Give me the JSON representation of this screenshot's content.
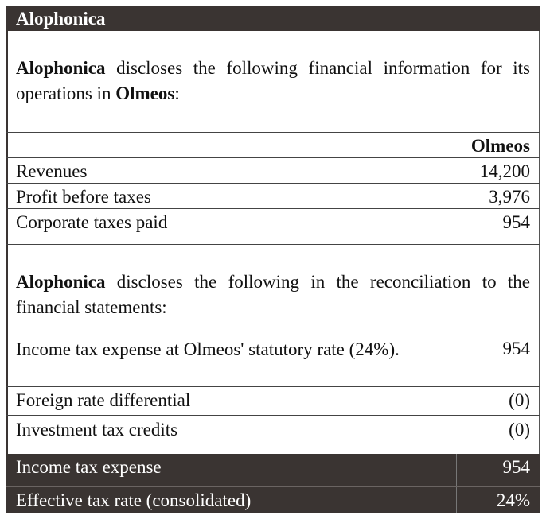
{
  "title": "Alophonica",
  "intro": {
    "company": "Alophonica",
    "text_a": " discloses the following financial information for its operations in ",
    "country": "Olmeos",
    "text_b": ":"
  },
  "table1": {
    "column_header": "Olmeos",
    "rows": [
      {
        "label": "Revenues",
        "value": "14,200"
      },
      {
        "label": "Profit before taxes",
        "value": "3,976"
      },
      {
        "label": "Corporate taxes paid",
        "value": "954"
      }
    ]
  },
  "reconciliation_intro": {
    "company": "Alophonica",
    "text": " discloses the following in the reconciliation to the financial statements:"
  },
  "table2": {
    "rows": [
      {
        "label": "Income tax expense at Olmeos' statutory rate (24%).",
        "value": "954"
      },
      {
        "label": "Foreign rate differential",
        "value": "(0)"
      },
      {
        "label": "Investment tax credits",
        "value": "(0)"
      }
    ]
  },
  "totals": [
    {
      "label": "Income tax expense",
      "value": "954"
    },
    {
      "label": "Effective tax rate (consolidated)",
      "value": "24%"
    }
  ],
  "colors": {
    "dark_fill": "#3a3432",
    "text": "#111111",
    "inverse_text": "#ffffff"
  }
}
